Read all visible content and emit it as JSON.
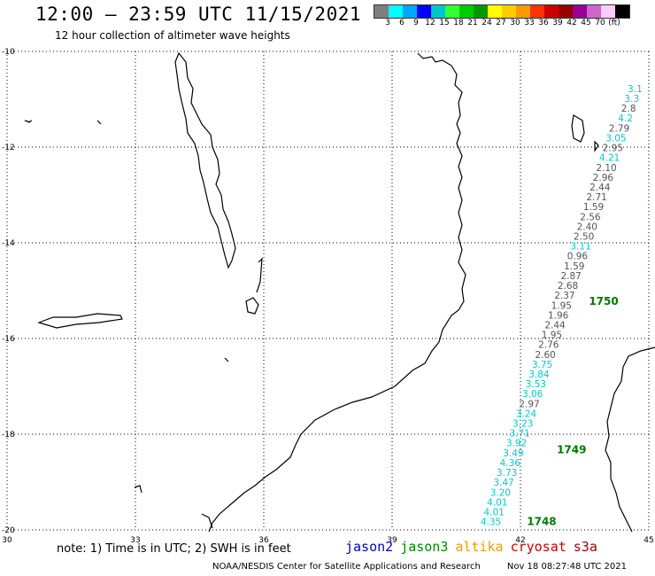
{
  "header": {
    "title": "12:00 – 23:59 UTC 11/15/2021",
    "subtitle": "12 hour collection of altimeter wave heights"
  },
  "legend": {
    "colors": [
      "#7f7f7f",
      "#00ffff",
      "#00a6ff",
      "#0000ff",
      "#00c8c8",
      "#33ff33",
      "#00cc00",
      "#009900",
      "#ffff00",
      "#ffcc00",
      "#ff9900",
      "#ff3300",
      "#cc0000",
      "#990000",
      "#990099",
      "#cc66cc",
      "#ffccff",
      "#000000"
    ],
    "ticks": [
      "3",
      "6",
      "9",
      "12",
      "15",
      "18",
      "21",
      "24",
      "27",
      "30",
      "33",
      "36",
      "39",
      "42",
      "45",
      "70",
      "(ft)"
    ]
  },
  "axes": {
    "x_ticks": [
      30,
      33,
      36,
      39,
      42,
      45
    ],
    "y_ticks": [
      -10,
      -12,
      -14,
      -16,
      -18,
      -20
    ],
    "xlim": [
      30,
      45
    ],
    "ylim": [
      -20,
      -10
    ]
  },
  "satellite_colors": {
    "jason2": "#0000cc",
    "jason3": "#008800",
    "altika": "#ff9900",
    "cryosat": "#cc0000",
    "s3a": "#990000",
    "swh_cyan": "#00cccc",
    "swh_gray": "#555555",
    "pass_label": "#007700"
  },
  "swh_values": [
    {
      "v": "3.1",
      "c": "c"
    },
    {
      "v": "3.3",
      "c": "c"
    },
    {
      "v": "2.8",
      "c": "g"
    },
    {
      "v": "4.2",
      "c": "c"
    },
    {
      "v": "2.79",
      "c": "g"
    },
    {
      "v": "3.05",
      "c": "c"
    },
    {
      "v": "2.95",
      "c": "g"
    },
    {
      "v": "4.21",
      "c": "c"
    },
    {
      "v": "2.10",
      "c": "g"
    },
    {
      "v": "2.96",
      "c": "g"
    },
    {
      "v": "2.44",
      "c": "g"
    },
    {
      "v": "2.71",
      "c": "g"
    },
    {
      "v": "1.59",
      "c": "g"
    },
    {
      "v": "2.56",
      "c": "g"
    },
    {
      "v": "2.40",
      "c": "g"
    },
    {
      "v": "2.50",
      "c": "g"
    },
    {
      "v": "3.11",
      "c": "c"
    },
    {
      "v": "0.96",
      "c": "g"
    },
    {
      "v": "1.59",
      "c": "g"
    },
    {
      "v": "2.87",
      "c": "g"
    },
    {
      "v": "2.68",
      "c": "g"
    },
    {
      "v": "2.37",
      "c": "g"
    },
    {
      "v": "1.95",
      "c": "g"
    },
    {
      "v": "1.96",
      "c": "g"
    },
    {
      "v": "2.44",
      "c": "g"
    },
    {
      "v": "1.95",
      "c": "g"
    },
    {
      "v": "2.76",
      "c": "g"
    },
    {
      "v": "2.60",
      "c": "g"
    },
    {
      "v": "3.75",
      "c": "c"
    },
    {
      "v": "3.84",
      "c": "c"
    },
    {
      "v": "3.53",
      "c": "c"
    },
    {
      "v": "3.06",
      "c": "c"
    },
    {
      "v": "2.97",
      "c": "g"
    },
    {
      "v": "3.24",
      "c": "c"
    },
    {
      "v": "3.23",
      "c": "c"
    },
    {
      "v": "3.71",
      "c": "c"
    },
    {
      "v": "3.92",
      "c": "c"
    },
    {
      "v": "3.49",
      "c": "c"
    },
    {
      "v": "4.36",
      "c": "c"
    },
    {
      "v": "3.73",
      "c": "c"
    },
    {
      "v": "3.47",
      "c": "c"
    },
    {
      "v": "3.20",
      "c": "c"
    },
    {
      "v": "4.01",
      "c": "c"
    },
    {
      "v": "4.01",
      "c": "c"
    },
    {
      "v": "4.35",
      "c": "c"
    }
  ],
  "pass_labels": [
    "1750",
    "1749",
    "1748"
  ],
  "footer": {
    "note": "note: 1) Time is in UTC; 2) SWH is in feet",
    "satellites": [
      "jason2",
      "jason3",
      "altika",
      "cryosat",
      "s3a"
    ],
    "credit": "NOAA/NESDIS Center for Satellite Applications and Research",
    "timestamp": "Nov 18 08:27:48 UTC 2021"
  }
}
